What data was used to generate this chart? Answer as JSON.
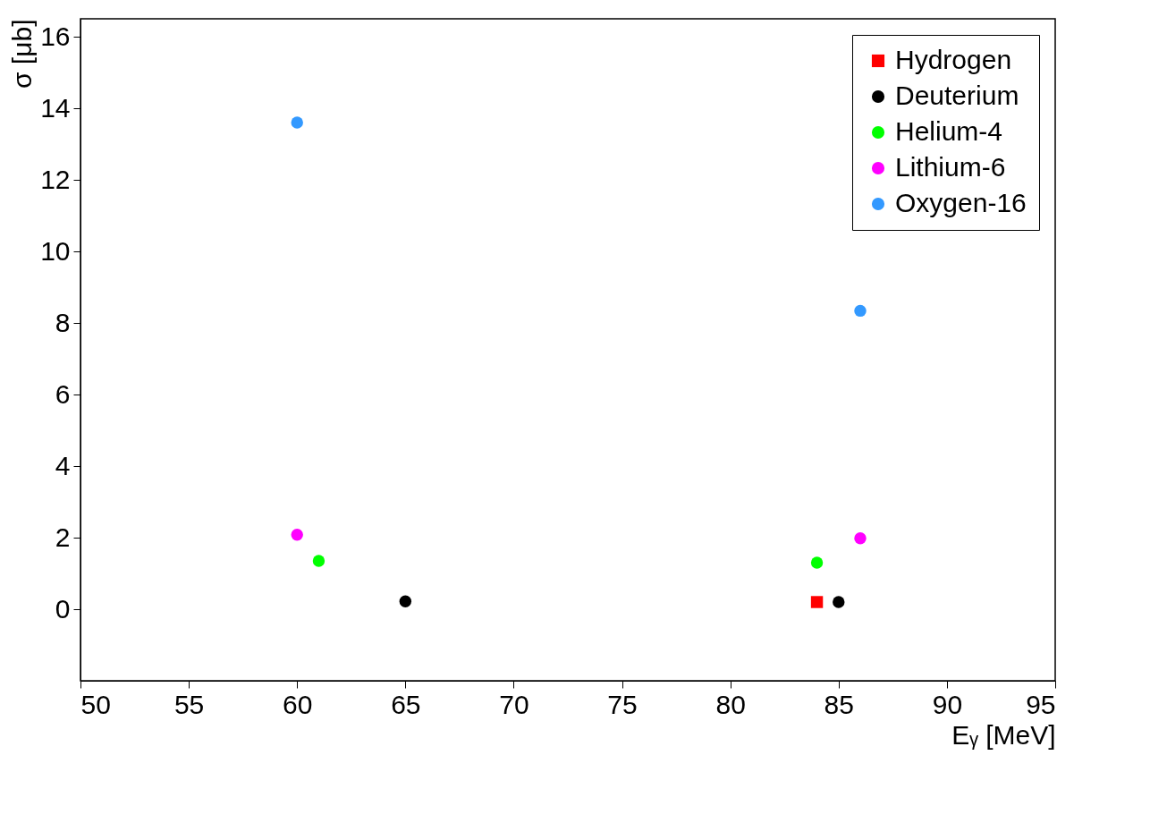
{
  "chart_data": {
    "type": "scatter",
    "xlabel": "Eᵧ [MeV]",
    "ylabel": "σ [μb]",
    "xlim": [
      50,
      95
    ],
    "xticks": [
      50,
      55,
      60,
      65,
      70,
      75,
      80,
      85,
      90,
      95
    ],
    "ylim": [
      -2,
      16.5
    ],
    "yticks": [
      0,
      2,
      4,
      6,
      8,
      10,
      12,
      14,
      16
    ],
    "grid": false,
    "legend": "top right",
    "series": [
      {
        "name": "Hydrogen",
        "color": "#ff0000",
        "marker": "square",
        "x": [
          84
        ],
        "values": [
          0.2
        ]
      },
      {
        "name": "Deuterium",
        "color": "#000000",
        "marker": "circle",
        "x": [
          65,
          85
        ],
        "values": [
          0.22,
          0.2
        ]
      },
      {
        "name": "Helium-4",
        "color": "#00ff00",
        "marker": "circle",
        "x": [
          61,
          84
        ],
        "values": [
          1.35,
          1.3
        ]
      },
      {
        "name": "Lithium-6",
        "color": "#ff00ff",
        "marker": "circle",
        "x": [
          60,
          86
        ],
        "values": [
          2.08,
          1.98
        ]
      },
      {
        "name": "Oxygen-16",
        "color": "#3399ff",
        "marker": "circle",
        "x": [
          60,
          86
        ],
        "values": [
          13.6,
          8.34
        ]
      }
    ]
  }
}
